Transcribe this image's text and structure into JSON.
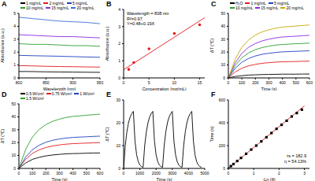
{
  "chart_data": [
    {
      "type": "line",
      "title": "A",
      "x_label": "Wavelength (nm)",
      "y_label": "Absorbance (a.u.)",
      "legend": "top",
      "x": [
        800,
        825,
        850,
        875,
        900,
        925,
        950
      ],
      "xlim": [
        800,
        950
      ],
      "xticks": [
        800,
        850,
        900,
        950
      ],
      "ylim": [
        0,
        5
      ],
      "yticks": [
        0,
        1,
        2,
        3,
        4,
        5
      ],
      "series": [
        {
          "name": "1 mg/mL",
          "color": "#000000",
          "values": [
            0.5,
            0.49,
            0.47,
            0.46,
            0.45,
            0.44,
            0.43
          ]
        },
        {
          "name": "2 mg/mL",
          "color": "#e31a1c",
          "values": [
            0.95,
            0.93,
            0.9,
            0.88,
            0.87,
            0.85,
            0.84
          ]
        },
        {
          "name": "5 mg/mL",
          "color": "#1f3fbf",
          "values": [
            1.75,
            1.72,
            1.7,
            1.68,
            1.65,
            1.62,
            1.6
          ]
        },
        {
          "name": "10 mg/mL",
          "color": "#2ca02c",
          "values": [
            2.65,
            2.6,
            2.6,
            2.55,
            2.5,
            2.5,
            2.45
          ]
        },
        {
          "name": "15 mg/mL",
          "color": "#8b2be2",
          "values": [
            3.35,
            3.3,
            3.25,
            3.2,
            3.2,
            3.15,
            3.1
          ]
        },
        {
          "name": "20 mg/mL",
          "color": "#3a6fd8",
          "values": [
            4.7,
            4.6,
            4.5,
            4.4,
            4.35,
            4.3,
            4.2
          ]
        }
      ]
    },
    {
      "type": "scatter",
      "title": "B",
      "x_label": "Concentration (mg/mL)",
      "y_label": "Absorbance (a.u.)",
      "annotations": [
        "Wavelength = 808 nm",
        "R²=0.97",
        "Y=0.48+0.19X"
      ],
      "xlim": [
        0,
        16
      ],
      "xticks": [
        0,
        5,
        10,
        15
      ],
      "ylim": [
        0,
        4
      ],
      "yticks": [
        0,
        1,
        2,
        3,
        4
      ],
      "series": [
        {
          "type": "scatter",
          "marker": "circle",
          "color": "#e31a1c",
          "x": [
            1,
            2,
            5,
            10,
            15
          ],
          "values": [
            0.5,
            0.9,
            1.7,
            2.6,
            3.1
          ]
        },
        {
          "type": "line",
          "color": "#e31a1c",
          "x": [
            0,
            16
          ],
          "values": [
            0.48,
            3.52
          ]
        }
      ]
    },
    {
      "type": "line",
      "title": "C",
      "x_label": "Time (s)",
      "y_label": "ΔT (℃)",
      "legend": "top",
      "x": [
        0,
        50,
        100,
        150,
        200,
        250,
        300,
        350,
        400,
        450,
        500,
        550,
        600
      ],
      "xlim": [
        0,
        600
      ],
      "xticks": [
        0,
        100,
        200,
        300,
        400,
        500,
        600
      ],
      "ylim": [
        0,
        50
      ],
      "yticks": [
        0,
        10,
        20,
        30,
        40,
        50
      ],
      "series": [
        {
          "name": "H₂O",
          "color": "#000000",
          "values": [
            0,
            1.1,
            1.7,
            2.2,
            2.4,
            2.6,
            2.7,
            2.8,
            2.9,
            2.9,
            2.9,
            3.0,
            3.0
          ]
        },
        {
          "name": "1 mg/mL",
          "color": "#e31a1c",
          "values": [
            0,
            4.6,
            7.5,
            9.4,
            10.5,
            11.3,
            11.8,
            12.2,
            12.5,
            12.6,
            12.7,
            12.9,
            13
          ]
        },
        {
          "name": "5 mg/mL",
          "color": "#1f3fbf",
          "values": [
            0,
            7.4,
            12.2,
            15.1,
            17.0,
            18.3,
            19.1,
            19.7,
            20.2,
            20.4,
            20.6,
            20.8,
            21
          ]
        },
        {
          "name": "10 mg/mL",
          "color": "#2ca02c",
          "values": [
            0,
            9.5,
            15.7,
            19.4,
            21.9,
            23.5,
            24.6,
            25.4,
            25.9,
            26.2,
            26.5,
            26.7,
            27
          ]
        },
        {
          "name": "15 mg/mL",
          "color": "#8b2be2",
          "values": [
            0,
            11.6,
            19.1,
            23.8,
            26.7,
            28.7,
            30.0,
            31.0,
            31.7,
            32.0,
            32.3,
            32.7,
            33
          ]
        },
        {
          "name": "20 mg/mL",
          "color": "#c8a800",
          "values": [
            0,
            14.4,
            23.8,
            29.5,
            33.2,
            35.7,
            37.3,
            38.5,
            39.4,
            39.8,
            40.2,
            40.6,
            41
          ]
        }
      ]
    },
    {
      "type": "line",
      "title": "D",
      "x_label": "Time (s)",
      "y_label": "ΔT (℃)",
      "legend": "top",
      "x": [
        0,
        50,
        100,
        150,
        200,
        250,
        300,
        350,
        400,
        450,
        500,
        550,
        600
      ],
      "xlim": [
        0,
        600
      ],
      "xticks": [
        0,
        100,
        200,
        300,
        400,
        500,
        600
      ],
      "ylim": [
        0,
        50
      ],
      "yticks": [
        0,
        10,
        20,
        30,
        40,
        50
      ],
      "series": [
        {
          "name": "0.5 W/cm²",
          "color": "#000000",
          "values": [
            0,
            4.2,
            7.0,
            8.6,
            9.7,
            10.4,
            10.9,
            11.3,
            11.5,
            11.6,
            11.8,
            11.9,
            12
          ]
        },
        {
          "name": "0.75 W/cm²",
          "color": "#e31a1c",
          "values": [
            0,
            7,
            11.6,
            14.4,
            16.2,
            17.4,
            18.2,
            18.8,
            19.2,
            19.4,
            19.6,
            19.8,
            20
          ]
        },
        {
          "name": "1 W/cm²",
          "color": "#1f3fbf",
          "values": [
            0,
            8.8,
            14.5,
            18,
            20.3,
            21.8,
            22.8,
            23.5,
            24,
            24.3,
            24.5,
            24.8,
            25
          ]
        },
        {
          "name": "1.5 W/cm²",
          "color": "#2ca02c",
          "values": [
            0,
            14.7,
            24.4,
            30.2,
            34,
            36.5,
            38.2,
            39.5,
            40.3,
            40.7,
            41.2,
            41.6,
            42
          ]
        }
      ]
    },
    {
      "type": "line",
      "title": "E",
      "x_label": "Time (s)",
      "y_label": "ΔT (℃)",
      "x": [
        0,
        100,
        200,
        300,
        400,
        500,
        600,
        700,
        800,
        900,
        1000,
        1100,
        1200,
        1300,
        1400,
        1500,
        1600,
        1700,
        1800,
        1900,
        2000,
        2100,
        2200,
        2300,
        2400,
        2500,
        2600,
        2700,
        2800,
        2900,
        3000,
        3100,
        3200,
        3300,
        3400,
        3500,
        3600,
        3700,
        3800,
        3900,
        4000,
        4100,
        4200,
        4300,
        4400,
        4500,
        4600,
        4700,
        4800
      ],
      "xlim": [
        0,
        5000
      ],
      "xticks": [
        0,
        1000,
        2000,
        3000,
        4000,
        5000
      ],
      "ylim": [
        0,
        30
      ],
      "yticks": [
        0,
        10,
        20,
        30
      ],
      "series": [
        {
          "color": "#000000",
          "values": [
            0,
            10,
            16,
            20,
            22.5,
            24,
            25,
            12,
            6,
            3,
            1.5,
            0.8,
            0.5,
            10,
            16,
            20,
            22.5,
            24,
            25,
            12,
            6,
            3,
            1.5,
            0.8,
            0.5,
            10,
            16,
            20,
            22.5,
            24,
            25,
            12,
            6,
            3,
            1.5,
            0.8,
            0.5,
            10,
            16,
            20,
            22.5,
            24,
            25,
            12,
            6,
            3,
            1.5,
            0.8,
            0.5
          ]
        }
      ]
    },
    {
      "type": "scatter",
      "title": "F",
      "x_label": "-Ln (θ)",
      "y_label": "Time (s)",
      "annotations": [
        "τs = 182.9",
        "η = 54.13%"
      ],
      "xlim": [
        0,
        3.2
      ],
      "xticks": [
        0,
        1,
        2,
        3
      ],
      "ylim": [
        0,
        600
      ],
      "yticks": [
        0,
        200,
        400,
        600
      ],
      "series": [
        {
          "type": "scatter",
          "marker": "square",
          "color": "#000000",
          "x": [
            0,
            0.1,
            0.2,
            0.35,
            0.5,
            0.7,
            0.9,
            1.1,
            1.3,
            1.5,
            1.7,
            1.9,
            2.1,
            2.3,
            2.5,
            2.7,
            2.9
          ],
          "values": [
            0,
            20,
            38,
            65,
            92,
            128,
            165,
            200,
            237,
            273,
            310,
            347,
            382,
            418,
            455,
            485,
            515
          ]
        },
        {
          "type": "line",
          "color": "#e31a1c",
          "x": [
            0,
            3
          ],
          "values": [
            0,
            548.7
          ]
        }
      ]
    }
  ]
}
